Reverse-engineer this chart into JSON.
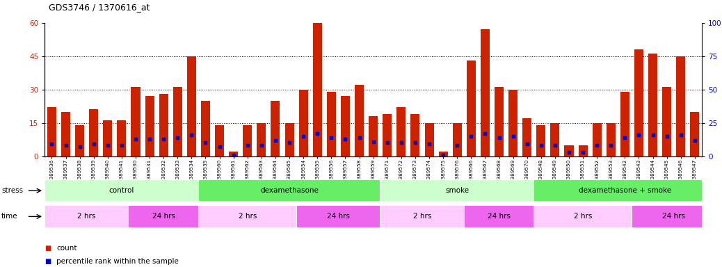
{
  "title": "GDS3746 / 1370616_at",
  "samples": [
    "GSM389536",
    "GSM389537",
    "GSM389538",
    "GSM389539",
    "GSM389540",
    "GSM389541",
    "GSM389530",
    "GSM389531",
    "GSM389532",
    "GSM389533",
    "GSM389534",
    "GSM389535",
    "GSM389560",
    "GSM389561",
    "GSM389562",
    "GSM389563",
    "GSM389564",
    "GSM389565",
    "GSM389554",
    "GSM389555",
    "GSM389556",
    "GSM389557",
    "GSM389558",
    "GSM389559",
    "GSM389571",
    "GSM389572",
    "GSM389573",
    "GSM389574",
    "GSM389575",
    "GSM389576",
    "GSM389566",
    "GSM389567",
    "GSM389568",
    "GSM389569",
    "GSM389570",
    "GSM389548",
    "GSM389549",
    "GSM389550",
    "GSM389551",
    "GSM389552",
    "GSM389553",
    "GSM389542",
    "GSM389543",
    "GSM389544",
    "GSM389545",
    "GSM389546",
    "GSM389547"
  ],
  "counts": [
    22,
    20,
    14,
    21,
    16,
    16,
    31,
    27,
    28,
    31,
    45,
    25,
    14,
    2,
    14,
    15,
    25,
    15,
    30,
    60,
    29,
    27,
    32,
    18,
    19,
    22,
    19,
    15,
    2,
    15,
    43,
    57,
    31,
    30,
    17,
    14,
    15,
    5,
    5,
    15,
    15,
    29,
    48,
    46,
    31,
    45,
    20
  ],
  "percentile_ranks": [
    9,
    8,
    7,
    9,
    8,
    8,
    13,
    13,
    13,
    14,
    16,
    10,
    7,
    1,
    8,
    8,
    12,
    10,
    15,
    17,
    14,
    13,
    14,
    11,
    10,
    10,
    10,
    9,
    1,
    8,
    15,
    17,
    14,
    15,
    9,
    8,
    8,
    3,
    3,
    8,
    8,
    14,
    16,
    16,
    15,
    16,
    12
  ],
  "bar_color": "#cc2200",
  "dot_color": "#0000cc",
  "ylim_left": [
    0,
    60
  ],
  "ylim_right": [
    0,
    100
  ],
  "yticks_left": [
    0,
    15,
    30,
    45,
    60
  ],
  "yticks_right": [
    0,
    25,
    50,
    75,
    100
  ],
  "grid_lines": [
    15,
    30,
    45
  ],
  "stress_groups": [
    {
      "label": "control",
      "start": 0,
      "end": 11,
      "color": "#ccffcc"
    },
    {
      "label": "dexamethasone",
      "start": 11,
      "end": 24,
      "color": "#66ee66"
    },
    {
      "label": "smoke",
      "start": 24,
      "end": 35,
      "color": "#ccffcc"
    },
    {
      "label": "dexamethasone + smoke",
      "start": 35,
      "end": 48,
      "color": "#66ee66"
    }
  ],
  "time_groups": [
    {
      "label": "2 hrs",
      "start": 0,
      "end": 6,
      "color": "#ffccff"
    },
    {
      "label": "24 hrs",
      "start": 6,
      "end": 11,
      "color": "#ee66ee"
    },
    {
      "label": "2 hrs",
      "start": 11,
      "end": 18,
      "color": "#ffccff"
    },
    {
      "label": "24 hrs",
      "start": 18,
      "end": 24,
      "color": "#ee66ee"
    },
    {
      "label": "2 hrs",
      "start": 24,
      "end": 30,
      "color": "#ffccff"
    },
    {
      "label": "24 hrs",
      "start": 30,
      "end": 35,
      "color": "#ee66ee"
    },
    {
      "label": "2 hrs",
      "start": 35,
      "end": 42,
      "color": "#ffccff"
    },
    {
      "label": "24 hrs",
      "start": 42,
      "end": 48,
      "color": "#ee66ee"
    }
  ],
  "legend_items": [
    {
      "label": "count",
      "color": "#cc2200"
    },
    {
      "label": "percentile rank within the sample",
      "color": "#0000cc"
    }
  ],
  "background_color": "#ffffff",
  "bar_width": 0.65
}
